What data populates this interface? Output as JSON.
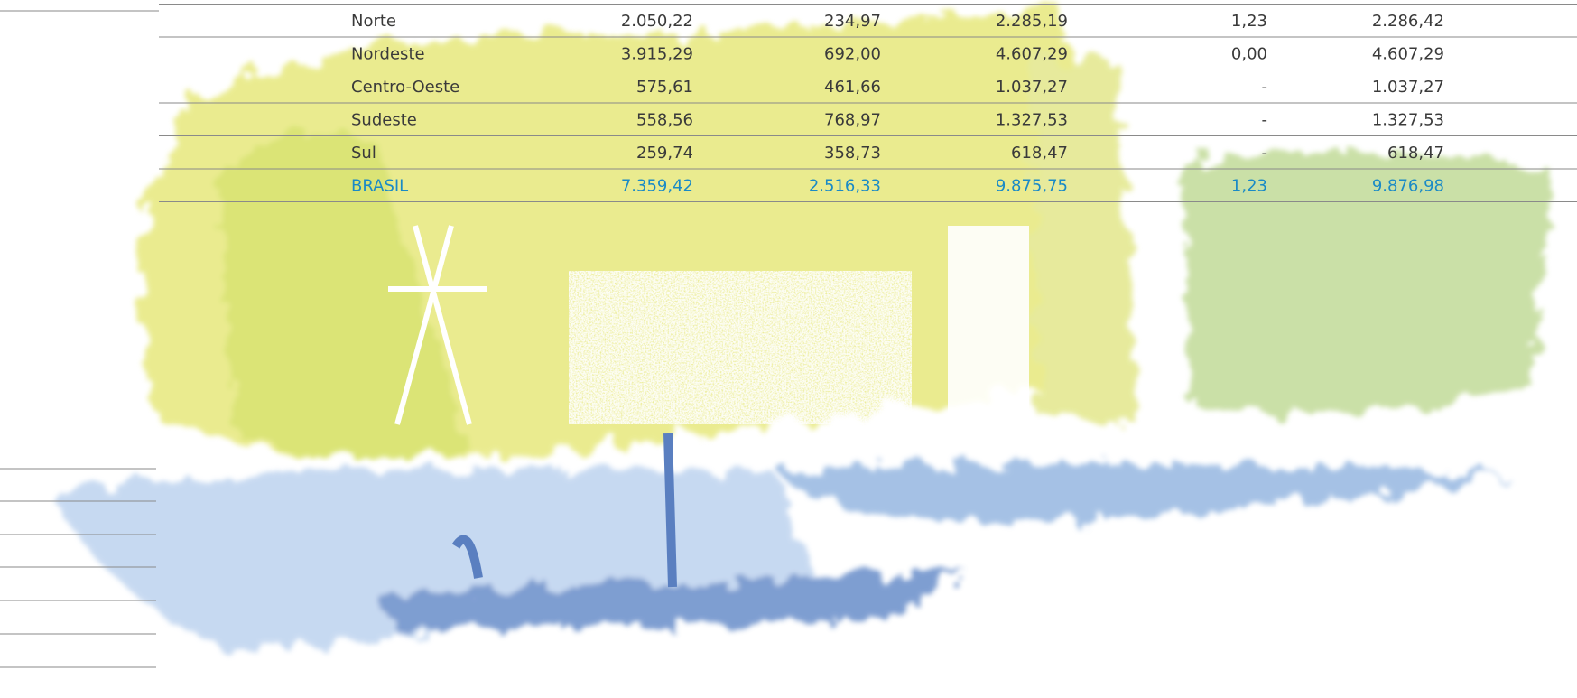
{
  "table": {
    "rows": [
      [
        "Norte",
        "2.050,22",
        "234,97",
        "2.285,19",
        "1,23",
        "2.286,42"
      ],
      [
        "Nordeste",
        "3.915,29",
        "692,00",
        "4.607,29",
        "0,00",
        "4.607,29"
      ],
      [
        "Centro-Oeste",
        "575,61",
        "461,66",
        "1.037,27",
        "-",
        "1.037,27"
      ],
      [
        "Sudeste",
        "558,56",
        "768,97",
        "1.327,53",
        "-",
        "1.327,53"
      ],
      [
        "Sul",
        "259,74",
        "358,73",
        "618,47",
        "-",
        "618,47"
      ],
      [
        "BRASIL",
        "7.359,42",
        "2.516,33",
        "9.875,75",
        "1,23",
        "9.876,98"
      ]
    ]
  }
}
